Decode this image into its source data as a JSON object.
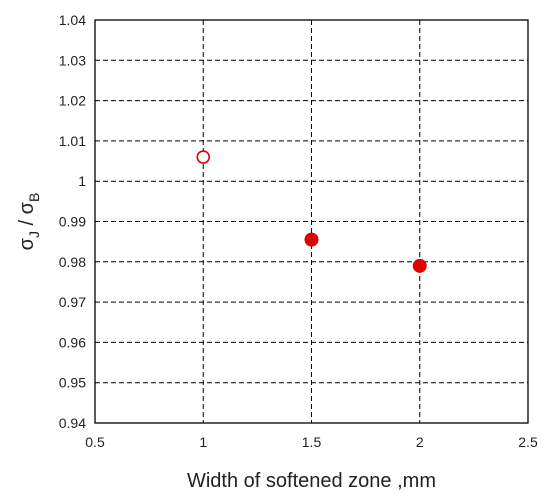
{
  "chart_data": {
    "type": "scatter",
    "xlabel": "Width of softened zone ,mm",
    "ylabel": {
      "main": "σ",
      "sub1": "J",
      "sep": " / ",
      "main2": "σ",
      "sub2": "B"
    },
    "xlim": [
      0.5,
      2.5
    ],
    "ylim": [
      0.94,
      1.04
    ],
    "x_ticks": [
      0.5,
      1,
      1.5,
      2,
      2.5
    ],
    "x_tick_labels": [
      "0.5",
      "1",
      "1.5",
      "2",
      "2.5"
    ],
    "y_ticks": [
      0.94,
      0.95,
      0.96,
      0.97,
      0.98,
      0.99,
      1.0,
      1.01,
      1.02,
      1.03,
      1.04
    ],
    "y_tick_labels": [
      "0.94",
      "0.95",
      "0.96",
      "0.97",
      "0.98",
      "0.99",
      "1",
      "1.01",
      "1.02",
      "1.03",
      "1.04"
    ],
    "grid": true,
    "series": [
      {
        "marker": "open-circle",
        "color": "#e00000",
        "points": [
          {
            "x": 1,
            "y": 1.006
          }
        ]
      },
      {
        "marker": "filled-circle",
        "color": "#e00000",
        "points": [
          {
            "x": 1.5,
            "y": 0.9855
          },
          {
            "x": 2,
            "y": 0.979
          }
        ]
      }
    ]
  }
}
